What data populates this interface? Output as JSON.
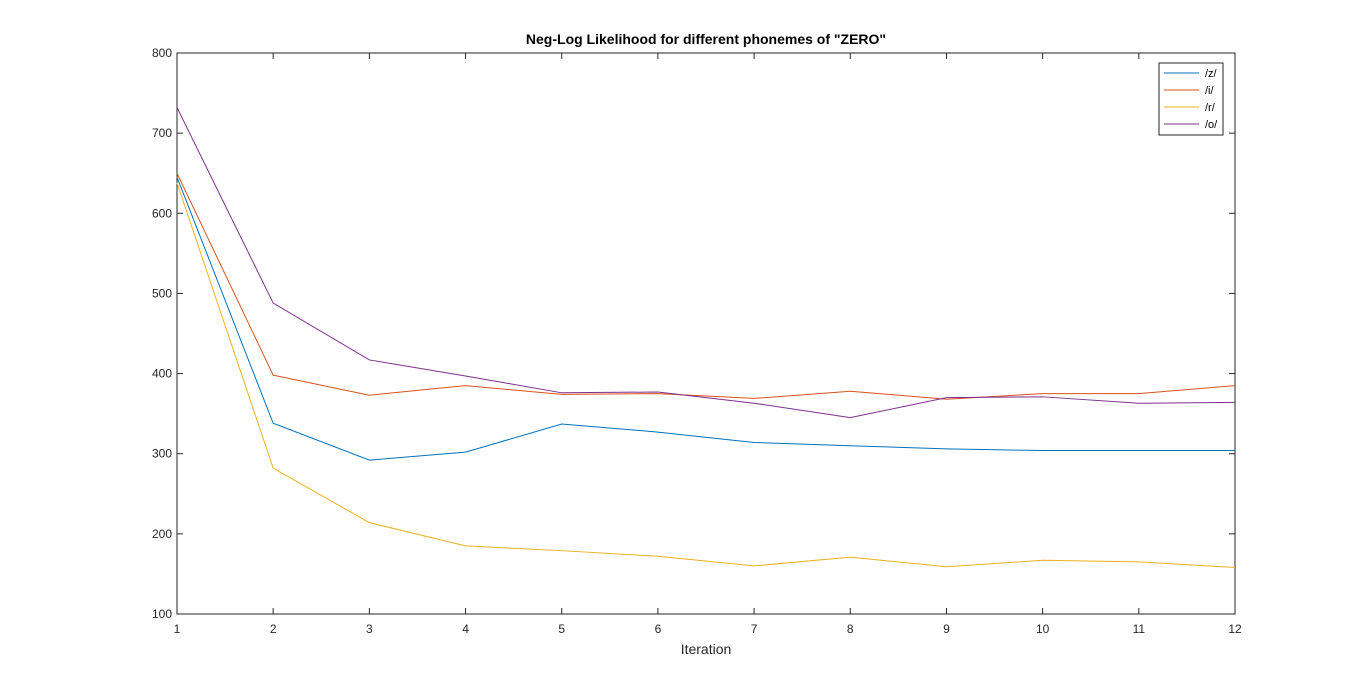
{
  "chart_data": {
    "type": "line",
    "title": "Neg-Log Likelihood for different phonemes of \"ZERO\"",
    "xlabel": "Iteration",
    "ylabel": "",
    "x": [
      1,
      2,
      3,
      4,
      5,
      6,
      7,
      8,
      9,
      10,
      11,
      12
    ],
    "xlim": [
      1,
      12
    ],
    "ylim": [
      100,
      800
    ],
    "xticks": [
      "1",
      "2",
      "3",
      "4",
      "5",
      "6",
      "7",
      "8",
      "9",
      "10",
      "11",
      "12"
    ],
    "yticks": [
      "100",
      "200",
      "300",
      "400",
      "500",
      "600",
      "700",
      "800"
    ],
    "grid": false,
    "legend_position": "top-right",
    "series": [
      {
        "name": "/z/",
        "color": "#0072BD",
        "values": [
          645,
          338,
          292,
          302,
          337,
          327,
          314,
          310,
          306,
          304,
          304,
          304
        ]
      },
      {
        "name": "/i/",
        "color": "#D95319",
        "values": [
          650,
          398,
          373,
          385,
          374,
          375,
          369,
          378,
          368,
          375,
          375,
          385
        ]
      },
      {
        "name": "/r/",
        "color": "#EDB120",
        "values": [
          638,
          282,
          214,
          185,
          179,
          172,
          160,
          171,
          159,
          167,
          165,
          158
        ]
      },
      {
        "name": "/o/",
        "color": "#7E2F8E",
        "values": [
          732,
          488,
          417,
          397,
          376,
          377,
          363,
          345,
          370,
          371,
          363,
          364
        ]
      }
    ]
  }
}
